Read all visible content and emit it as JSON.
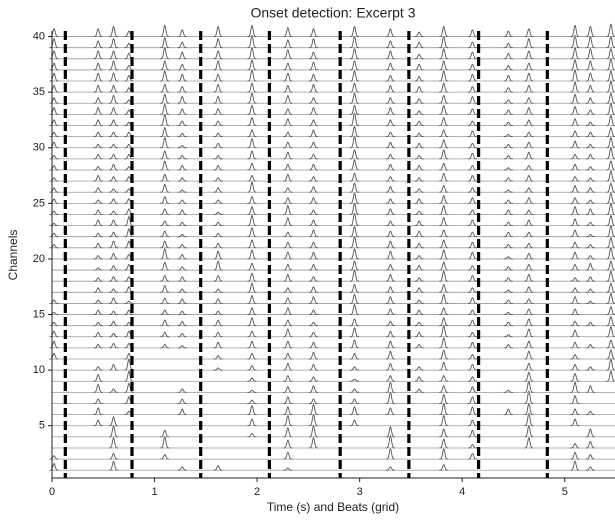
{
  "chart_data": {
    "type": "onsets",
    "title": "Onset detection: Excerpt 3",
    "x_label": "Time (s) and Beats (grid)",
    "y_label": "Channels",
    "xlim": [
      0,
      5.49
    ],
    "ylim": [
      0.3,
      40.5
    ],
    "xticks": [
      0,
      1,
      2,
      3,
      4,
      5
    ],
    "yticks": [
      5,
      10,
      15,
      20,
      25,
      30,
      35,
      40
    ],
    "beats": [
      0.13,
      0.78,
      1.45,
      2.12,
      2.81,
      3.48,
      4.16,
      4.83
    ],
    "color": "#555555",
    "beat_color": "#000000",
    "x": [
      0.02,
      0.45,
      0.6,
      0.75,
      1.1,
      1.27,
      1.62,
      1.95,
      2.3,
      2.55,
      2.95,
      3.3,
      3.58,
      3.82,
      4.1,
      4.45,
      4.65,
      5.1,
      5.25,
      5.45
    ],
    "series": [
      {
        "values": [
          0.6,
          null,
          0.8,
          null,
          null,
          0.3,
          0.4,
          null,
          0.2,
          null,
          null,
          0.3,
          null,
          0.5,
          null,
          null,
          null,
          0.8,
          0.3,
          null
        ]
      },
      {
        "values": [
          0.3,
          null,
          0.5,
          null,
          0.4,
          null,
          null,
          null,
          0.6,
          null,
          null,
          0.9,
          null,
          0.9,
          0.5,
          null,
          null,
          0.6,
          0.4,
          null
        ]
      },
      {
        "values": [
          null,
          null,
          0.9,
          null,
          1.0,
          null,
          null,
          null,
          0.7,
          0.9,
          null,
          1.1,
          null,
          0.8,
          0.3,
          null,
          0.9,
          0.4,
          0.6,
          null
        ]
      },
      {
        "values": [
          null,
          null,
          1.0,
          null,
          0.6,
          null,
          null,
          0.3,
          0.8,
          1.0,
          null,
          0.9,
          null,
          0.7,
          0.6,
          null,
          1.0,
          null,
          0.7,
          null
        ]
      },
      {
        "values": [
          null,
          0.5,
          0.8,
          null,
          null,
          null,
          null,
          0.6,
          0.9,
          1.0,
          0.5,
          null,
          null,
          0.9,
          0.5,
          null,
          1.1,
          0.6,
          null,
          null
        ]
      },
      {
        "values": [
          null,
          0.6,
          null,
          0.3,
          null,
          0.5,
          null,
          0.8,
          0.7,
          0.9,
          0.7,
          0.6,
          null,
          1.0,
          0.7,
          0.5,
          1.0,
          0.5,
          0.3,
          null
        ]
      },
      {
        "values": [
          null,
          0.4,
          null,
          0.6,
          null,
          0.4,
          null,
          0.3,
          0.6,
          0.4,
          0.4,
          1.0,
          null,
          0.8,
          0.6,
          null,
          1.1,
          0.7,
          null,
          null
        ]
      },
      {
        "values": [
          null,
          0.7,
          0.3,
          0.8,
          null,
          0.3,
          null,
          0.2,
          0.5,
          0.6,
          0.3,
          0.9,
          0.3,
          0.6,
          0.5,
          0.2,
          1.0,
          0.9,
          0.6,
          null
        ]
      },
      {
        "values": [
          null,
          0.6,
          null,
          0.9,
          null,
          null,
          null,
          0.3,
          0.5,
          0.4,
          0.2,
          0.5,
          0.4,
          0.5,
          0.4,
          null,
          0.8,
          0.7,
          null,
          0.9
        ]
      },
      {
        "values": [
          null,
          0.3,
          0.5,
          1.0,
          null,
          null,
          0.2,
          0.4,
          0.6,
          0.5,
          0.3,
          0.6,
          0.3,
          0.7,
          0.5,
          null,
          0.6,
          0.5,
          0.3,
          1.0
        ]
      },
      {
        "values": [
          0.5,
          null,
          null,
          0.5,
          null,
          null,
          0.3,
          0.5,
          0.5,
          0.6,
          0.5,
          0.7,
          null,
          0.8,
          0.4,
          null,
          0.7,
          0.4,
          null,
          0.8
        ]
      },
      {
        "values": [
          0.6,
          0.3,
          0.4,
          0.4,
          0.3,
          0.2,
          0.5,
          0.6,
          0.6,
          0.5,
          0.7,
          0.6,
          0.3,
          0.9,
          0.5,
          0.3,
          0.6,
          0.5,
          0.3,
          0.7
        ]
      },
      {
        "values": [
          0.5,
          0.4,
          0.3,
          0.5,
          0.4,
          0.3,
          0.4,
          0.5,
          0.7,
          0.4,
          0.8,
          0.5,
          0.4,
          1.0,
          0.4,
          0.2,
          0.7,
          0.6,
          null,
          0.9
        ]
      },
      {
        "values": [
          0.3,
          0.3,
          0.4,
          0.3,
          0.5,
          0.4,
          0.5,
          0.7,
          0.5,
          0.3,
          0.6,
          0.4,
          0.3,
          0.7,
          0.5,
          0.3,
          0.6,
          0.4,
          0.3,
          0.8
        ]
      },
      {
        "values": [
          0.2,
          0.4,
          0.3,
          0.4,
          0.4,
          0.3,
          0.3,
          0.6,
          0.6,
          0.4,
          0.9,
          0.5,
          0.4,
          0.6,
          0.4,
          0.2,
          0.5,
          0.5,
          null,
          0.7
        ]
      },
      {
        "values": [
          0.3,
          0.3,
          0.5,
          0.2,
          0.5,
          0.4,
          0.4,
          0.7,
          0.5,
          0.6,
          0.8,
          0.6,
          0.3,
          0.8,
          0.5,
          0.3,
          0.4,
          0.6,
          0.2,
          0.9
        ]
      },
      {
        "values": [
          null,
          0.4,
          0.3,
          0.5,
          0.6,
          0.3,
          0.3,
          0.8,
          0.4,
          0.5,
          0.7,
          0.5,
          0.4,
          0.7,
          0.4,
          0.2,
          0.5,
          0.4,
          0.3,
          0.8
        ]
      },
      {
        "values": [
          null,
          0.3,
          0.4,
          0.4,
          0.5,
          0.4,
          0.5,
          0.7,
          0.6,
          0.4,
          1.0,
          0.6,
          0.3,
          0.9,
          0.5,
          0.3,
          0.6,
          0.3,
          0.4,
          0.9
        ]
      },
      {
        "values": [
          null,
          0.2,
          0.4,
          0.5,
          0.7,
          0.3,
          0.8,
          0.6,
          0.5,
          0.5,
          0.8,
          0.5,
          0.4,
          0.7,
          0.4,
          0.3,
          0.5,
          0.5,
          0.6,
          0.8
        ]
      },
      {
        "values": [
          null,
          0.3,
          0.5,
          0.4,
          0.9,
          0.4,
          0.7,
          0.8,
          0.6,
          0.6,
          0.9,
          0.7,
          0.3,
          0.8,
          0.6,
          0.2,
          0.5,
          0.6,
          0.3,
          1.0
        ]
      },
      {
        "values": [
          0.3,
          0.4,
          0.6,
          0.6,
          0.6,
          0.3,
          0.4,
          0.7,
          0.5,
          0.5,
          1.0,
          0.6,
          0.4,
          0.7,
          0.5,
          0.3,
          0.4,
          0.5,
          0.3,
          0.9
        ]
      },
      {
        "values": [
          0.3,
          0.3,
          0.4,
          0.7,
          0.5,
          0.2,
          0.3,
          0.8,
          0.4,
          0.6,
          0.9,
          0.5,
          0.5,
          0.6,
          0.4,
          0.4,
          0.4,
          0.6,
          0.2,
          1.0
        ]
      },
      {
        "values": [
          0.2,
          0.5,
          0.5,
          0.8,
          0.4,
          0.3,
          0.3,
          0.9,
          0.7,
          0.5,
          1.1,
          0.4,
          0.4,
          0.7,
          0.5,
          0.3,
          0.5,
          0.6,
          0.3,
          0.9
        ]
      },
      {
        "values": [
          0.3,
          0.4,
          0.3,
          0.5,
          0.5,
          0.4,
          0.2,
          0.7,
          0.8,
          0.4,
          1.0,
          0.5,
          0.3,
          0.8,
          0.4,
          0.4,
          0.4,
          0.7,
          0.5,
          1.0
        ]
      },
      {
        "values": [
          0.4,
          0.3,
          0.4,
          0.4,
          0.6,
          0.3,
          0.3,
          0.6,
          0.5,
          0.5,
          0.9,
          0.4,
          0.4,
          0.7,
          0.5,
          0.3,
          0.5,
          0.5,
          0.3,
          0.9
        ]
      },
      {
        "values": [
          0.4,
          0.4,
          0.3,
          0.3,
          0.7,
          0.2,
          0.4,
          0.9,
          0.4,
          0.5,
          0.8,
          0.5,
          0.3,
          0.6,
          0.4,
          0.2,
          0.4,
          0.6,
          0.4,
          0.8
        ]
      },
      {
        "values": [
          0.3,
          0.5,
          0.4,
          0.4,
          0.6,
          0.3,
          0.3,
          0.5,
          0.6,
          0.4,
          0.7,
          0.4,
          0.3,
          0.7,
          0.5,
          0.3,
          0.5,
          0.4,
          0.3,
          0.9
        ]
      },
      {
        "values": [
          0.4,
          0.3,
          0.5,
          0.3,
          0.8,
          0.4,
          0.4,
          0.6,
          0.5,
          0.5,
          0.9,
          0.5,
          0.4,
          0.6,
          0.4,
          0.2,
          0.4,
          0.5,
          0.3,
          0.8
        ]
      },
      {
        "values": [
          0.3,
          0.4,
          0.4,
          0.4,
          0.7,
          0.3,
          0.3,
          0.7,
          0.6,
          0.4,
          0.8,
          0.4,
          0.3,
          0.8,
          0.5,
          0.3,
          0.6,
          0.4,
          0.4,
          1.0
        ]
      },
      {
        "values": [
          0.5,
          0.3,
          0.3,
          0.3,
          0.9,
          0.2,
          0.4,
          0.8,
          0.5,
          0.5,
          1.0,
          0.5,
          0.4,
          0.7,
          0.4,
          0.3,
          0.5,
          0.6,
          0.3,
          0.9
        ]
      },
      {
        "values": [
          0.4,
          0.4,
          0.4,
          0.4,
          0.8,
          0.3,
          0.3,
          0.6,
          0.4,
          0.6,
          0.9,
          0.4,
          0.3,
          0.6,
          0.5,
          0.2,
          0.4,
          0.5,
          0.4,
          0.8
        ]
      },
      {
        "values": [
          0.5,
          0.5,
          0.5,
          0.3,
          1.0,
          0.4,
          0.4,
          0.7,
          0.6,
          0.5,
          1.1,
          0.5,
          0.4,
          0.7,
          0.4,
          0.3,
          0.5,
          0.6,
          0.3,
          0.9
        ]
      },
      {
        "values": [
          0.6,
          0.6,
          0.6,
          0.4,
          0.9,
          0.5,
          0.5,
          0.8,
          0.5,
          0.6,
          0.8,
          0.6,
          0.3,
          0.8,
          0.5,
          0.4,
          0.6,
          0.7,
          0.4,
          1.0
        ]
      },
      {
        "values": [
          0.5,
          0.5,
          0.7,
          0.3,
          0.8,
          0.6,
          0.6,
          0.9,
          0.7,
          0.5,
          0.9,
          0.5,
          0.4,
          0.7,
          0.6,
          0.3,
          0.5,
          0.8,
          0.5,
          0.9
        ]
      },
      {
        "values": [
          0.6,
          0.6,
          0.6,
          0.4,
          0.7,
          0.5,
          0.7,
          0.8,
          0.6,
          0.7,
          0.8,
          0.6,
          0.5,
          0.8,
          0.5,
          0.4,
          0.6,
          0.9,
          0.6,
          1.0
        ]
      },
      {
        "values": [
          0.7,
          0.7,
          0.7,
          0.5,
          0.9,
          0.6,
          0.6,
          1.0,
          0.7,
          0.6,
          0.9,
          0.5,
          0.4,
          0.9,
          0.6,
          0.5,
          0.7,
          1.0,
          0.7,
          0.9
        ]
      },
      {
        "values": [
          0.6,
          0.6,
          0.8,
          0.4,
          0.8,
          0.5,
          0.8,
          0.9,
          0.6,
          0.7,
          0.8,
          0.6,
          0.5,
          0.8,
          0.5,
          0.4,
          0.6,
          0.9,
          0.8,
          1.0
        ]
      },
      {
        "values": [
          0.7,
          0.7,
          0.7,
          0.5,
          1.0,
          0.6,
          0.7,
          1.0,
          0.8,
          0.6,
          0.9,
          0.7,
          0.4,
          0.9,
          0.6,
          0.5,
          0.7,
          1.0,
          0.9,
          0.9
        ]
      },
      {
        "values": [
          0.8,
          0.6,
          0.8,
          0.4,
          0.9,
          0.5,
          0.8,
          1.1,
          0.7,
          0.8,
          1.0,
          0.6,
          0.5,
          1.0,
          0.5,
          0.4,
          0.8,
          1.1,
          1.0,
          1.0
        ]
      },
      {
        "values": [
          0.7,
          0.7,
          0.9,
          0.5,
          1.0,
          0.6,
          0.9,
          1.0,
          0.8,
          0.7,
          0.9,
          0.7,
          0.4,
          0.9,
          0.6,
          0.5,
          0.7,
          1.0,
          0.9,
          1.1
        ]
      }
    ]
  }
}
